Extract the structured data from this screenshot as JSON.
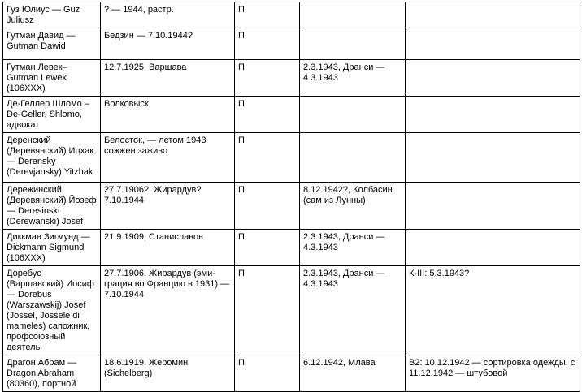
{
  "document": {
    "type": "book-page-table",
    "colors": {
      "background": "#ffffff",
      "text": "#000000",
      "border": "#000000"
    }
  },
  "table": {
    "rows": [
      [
        "Гуз Юлиус — Guz Juliusz",
        "? — 1944, растр.",
        "П",
        "",
        ""
      ],
      [
        "Гутман Давид — Gutman Dawid",
        "Бедзин — 7.10.1944?",
        "П",
        "",
        ""
      ],
      [
        "Гутман Левек– Gutman Lewek (106XXX)",
        "12.7.1925, Варшава",
        "П",
        "2.3.1943, Дранси — 4.3.1943",
        ""
      ],
      [
        "Де-Геллер Шломо –De-Geller, Shlomo, адвокат",
        "Волковыск",
        "П",
        "",
        ""
      ],
      [
        "Деренский (Деревянский) Ицхак — Derensky (Derevjansky) Yitzhak",
        "Белосток, — летом 1943 сожжен заживо",
        "П",
        "",
        ""
      ],
      [
        "Дережинский (Деревянский) Йозеф — Deresinski (Derewanski) Josef",
        "27.7.1906?, Жирардув? 7.10.1944",
        "П",
        "8.12.1942?, Колбасин (сам из Лунны)",
        ""
      ],
      [
        "Диккман Зигмунд — Dickmann Sigmund (106XXX)",
        "21.9.1909, Станиславов",
        "П",
        "2.3.1943, Дранси — 4.3.1943",
        ""
      ],
      [
        "Доребус (Варшавский) Иосиф — Dorebus (Warszawskij) Josef (Jossel, Jossele di mameles) сапожник, профсоюзный деятель",
        "27.7.1906, Жирардув (эми­грация во Францию в 1931) — 7.10.1944",
        "П",
        "2.3.1943, Дранси — 4.3.1943",
        "К-III: 5.3.1943?"
      ],
      [
        "Драгон Абрам — Dragon Abraham (80360), портной",
        "18.6.1919, Жеромин (Sichelberg)",
        "П",
        "6.12.1942, Млава",
        "В2: 10.12.1942 — сортировка одежды, с 11.12.1942 — штубовой"
      ]
    ]
  }
}
